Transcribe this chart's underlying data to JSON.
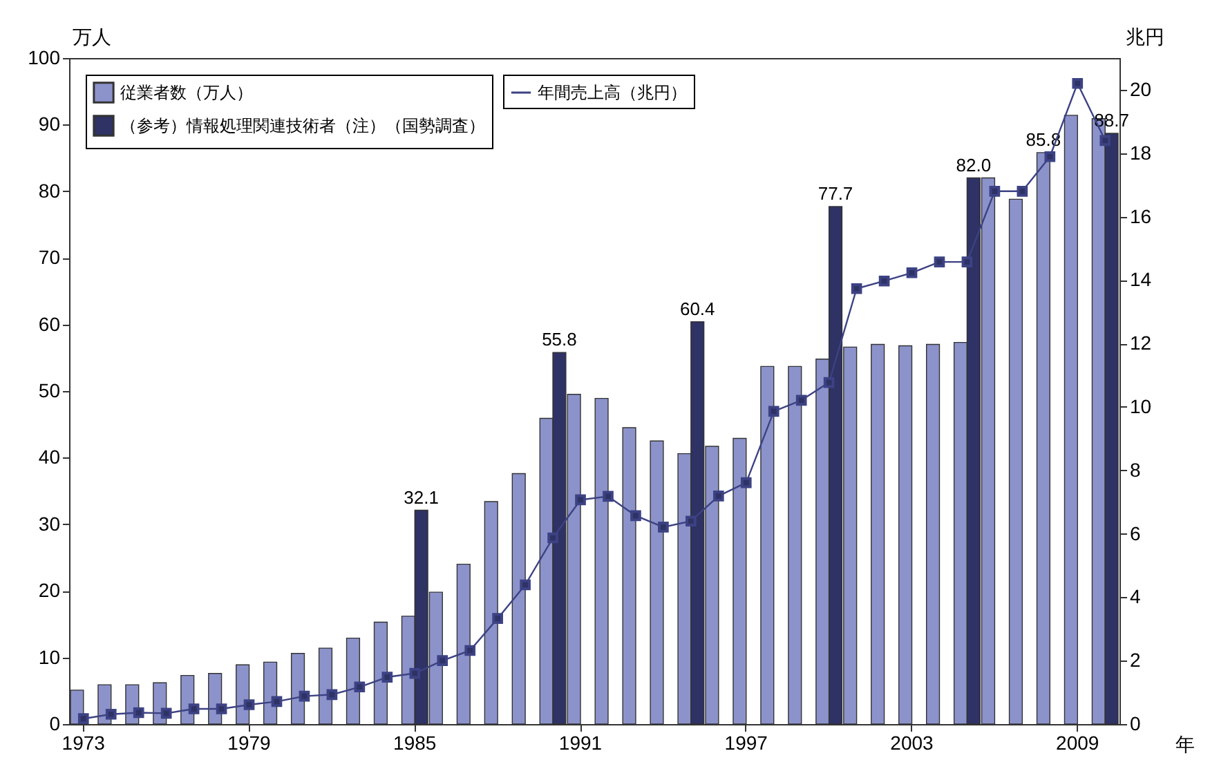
{
  "chart_data": {
    "type": "bar",
    "xlabel": "年",
    "ylabel": "万人",
    "y2label": "兆円",
    "categories": [
      "1973",
      null,
      null,
      null,
      null,
      null,
      "1979",
      null,
      null,
      null,
      null,
      null,
      "1985",
      null,
      null,
      null,
      null,
      null,
      "1991",
      null,
      null,
      null,
      null,
      null,
      "1997",
      null,
      null,
      null,
      null,
      null,
      "2003",
      null,
      null,
      null,
      null,
      null,
      "2009",
      null
    ],
    "ylim": [
      0,
      100
    ],
    "yticks": [
      0,
      10,
      20,
      30,
      40,
      50,
      60,
      70,
      80,
      90,
      100
    ],
    "y2lim": [
      0,
      21
    ],
    "y2ticks": [
      0,
      2,
      4,
      6,
      8,
      10,
      12,
      14,
      16,
      18,
      20
    ],
    "legend": "top left",
    "marker": "square",
    "series": [
      {
        "name": "従業者数（万人）",
        "color": "#8c93cb",
        "values": [
          5.1,
          5.9,
          5.9,
          6.2,
          7.3,
          7.6,
          8.9,
          9.3,
          10.6,
          11.4,
          12.9,
          15.3,
          16.2,
          19.8,
          24.0,
          33.4,
          37.6,
          45.9,
          49.5,
          48.9,
          44.5,
          42.5,
          40.6,
          41.7,
          42.9,
          53.7,
          53.7,
          54.8,
          56.6,
          57.0,
          56.8,
          57.0,
          57.3,
          82.0,
          78.8,
          85.8,
          91.4,
          90.9
        ],
        "value_labels": [
          null,
          null,
          null,
          null,
          null,
          null,
          null,
          null,
          null,
          null,
          null,
          null,
          null,
          null,
          null,
          null,
          null,
          null,
          null,
          null,
          null,
          null,
          null,
          null,
          null,
          null,
          null,
          null,
          null,
          null,
          null,
          null,
          null,
          null,
          null,
          "85.8",
          null,
          null
        ]
      },
      {
        "name": "（参考）情報処理関連技術者（注）（国勢調査）",
        "color": "#2e3264",
        "values": [
          null,
          null,
          null,
          null,
          null,
          null,
          null,
          null,
          null,
          null,
          null,
          null,
          32.1,
          null,
          null,
          null,
          null,
          55.8,
          null,
          null,
          null,
          null,
          60.4,
          null,
          null,
          null,
          null,
          77.7,
          null,
          null,
          null,
          null,
          82.0,
          null,
          null,
          null,
          null,
          88.7
        ],
        "value_labels": [
          null,
          null,
          null,
          null,
          null,
          null,
          null,
          null,
          null,
          null,
          null,
          null,
          "32.1",
          null,
          null,
          null,
          null,
          "55.8",
          null,
          null,
          null,
          null,
          "60.4",
          null,
          null,
          null,
          null,
          "77.7",
          null,
          null,
          null,
          null,
          "82.0",
          null,
          null,
          null,
          null,
          "88.7"
        ]
      },
      {
        "name": "年間売上高（兆円）",
        "type": "line",
        "axis": "y2",
        "color": "#3c4283",
        "values": [
          0.17,
          0.31,
          0.36,
          0.34,
          0.48,
          0.48,
          0.61,
          0.71,
          0.88,
          0.93,
          1.17,
          1.48,
          1.6,
          2.0,
          2.32,
          3.33,
          4.39,
          5.87,
          7.07,
          7.18,
          6.57,
          6.21,
          6.4,
          7.19,
          7.61,
          9.86,
          10.21,
          10.77,
          13.73,
          13.97,
          14.23,
          14.57,
          14.57,
          16.8,
          16.8,
          17.89,
          20.2,
          18.4
        ]
      }
    ]
  }
}
